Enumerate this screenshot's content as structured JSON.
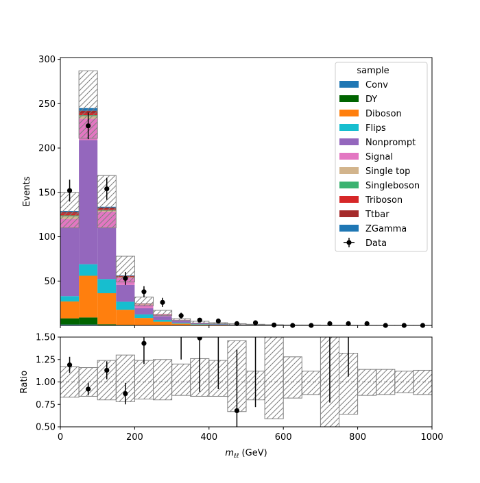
{
  "chart_data": {
    "type": "bar",
    "stacked": true,
    "bin_edges": [
      0,
      50,
      100,
      150,
      200,
      250,
      300,
      350,
      400,
      450,
      500,
      550,
      600,
      650,
      700,
      750,
      800,
      850,
      900,
      950,
      1000
    ],
    "xlim": [
      0,
      1000
    ],
    "main": {
      "ylabel": "Events",
      "ylim": [
        0,
        302
      ],
      "yticks": [
        50,
        100,
        150,
        200,
        250,
        300
      ],
      "series": [
        {
          "name": "Conv",
          "color": "#1f77b4",
          "values": [
            1,
            1,
            0.3,
            0.2,
            0.1,
            0,
            0,
            0,
            0,
            0,
            0,
            0,
            0,
            0,
            0,
            0,
            0,
            0,
            0,
            0
          ]
        },
        {
          "name": "DY",
          "color": "#006400",
          "values": [
            7,
            8,
            1,
            0.5,
            0.3,
            0.2,
            0.1,
            0,
            0,
            0,
            0,
            0,
            0,
            0,
            0,
            0,
            0,
            0,
            0,
            0
          ]
        },
        {
          "name": "Diboson",
          "color": "#ff7f0e",
          "values": [
            19,
            47,
            35,
            17,
            8,
            4,
            2,
            1,
            0.8,
            0.5,
            0.3,
            0.2,
            0.1,
            0.1,
            0.1,
            0,
            0,
            0,
            0,
            0
          ]
        },
        {
          "name": "Flips",
          "color": "#17becf",
          "values": [
            6,
            13,
            16,
            9,
            4,
            2,
            1,
            0.5,
            0.3,
            0.2,
            0.1,
            0,
            0,
            0,
            0,
            0,
            0,
            0,
            0,
            0
          ]
        },
        {
          "name": "Nonprompt",
          "color": "#9467bd",
          "values": [
            77,
            140,
            58,
            19,
            7,
            4,
            2,
            1,
            0.5,
            0.3,
            0.2,
            0.1,
            0,
            0,
            0,
            0,
            0,
            0,
            0,
            0
          ]
        },
        {
          "name": "Signal",
          "color": "#e377c2",
          "values": [
            10,
            24,
            18,
            8,
            4,
            2,
            1,
            0.5,
            0.3,
            0.2,
            0.1,
            0,
            0,
            0,
            0,
            0,
            0,
            0,
            0,
            0
          ]
        },
        {
          "name": "Single top",
          "color": "#d2b48c",
          "values": [
            3,
            3,
            1,
            0.5,
            0.3,
            0.1,
            0,
            0,
            0,
            0,
            0,
            0,
            0,
            0,
            0,
            0,
            0,
            0,
            0,
            0
          ]
        },
        {
          "name": "Singleboson",
          "color": "#3cb371",
          "values": [
            1,
            1,
            0.5,
            0.2,
            0.1,
            0,
            0,
            0,
            0,
            0,
            0,
            0,
            0,
            0,
            0,
            0,
            0,
            0,
            0,
            0
          ]
        },
        {
          "name": "Triboson",
          "color": "#d62728",
          "values": [
            2,
            2,
            1,
            0.5,
            0.3,
            0.2,
            0.1,
            0,
            0,
            0,
            0,
            0,
            0,
            0,
            0,
            0,
            0,
            0,
            0,
            0
          ]
        },
        {
          "name": "Ttbar",
          "color": "#a52a2a",
          "values": [
            2,
            3,
            2,
            1,
            0.5,
            0.3,
            0.1,
            0,
            0,
            0,
            0,
            0,
            0,
            0,
            0,
            0,
            0,
            0,
            0,
            0
          ]
        },
        {
          "name": "ZGamma",
          "color": "#1f77b4",
          "values": [
            1,
            3,
            1,
            0.5,
            0.2,
            0.1,
            0,
            0,
            0,
            0,
            0,
            0,
            0,
            0,
            0,
            0,
            0,
            0,
            0,
            0
          ]
        }
      ],
      "mc_uncertainty": {
        "down": [
          110,
          211,
          110,
          49,
          22,
          11,
          5.6,
          2.5,
          1.9,
          0.8,
          0.5,
          0.3,
          0.15,
          0.15,
          0.05,
          0.05,
          0.05,
          0.05,
          0.05,
          0.05
        ],
        "up": [
          150,
          287,
          169,
          78,
          32,
          17,
          7.6,
          4.7,
          3.1,
          2.0,
          1.3,
          0.8,
          0.5,
          0.5,
          0.35,
          0.35,
          0.2,
          0.2,
          0.2,
          0.2
        ]
      },
      "data": {
        "name": "Data",
        "x": [
          25,
          75,
          125,
          175,
          225,
          275,
          325,
          375,
          425,
          475,
          525,
          575,
          625,
          675,
          725,
          775,
          825,
          875,
          925,
          975
        ],
        "y": [
          152,
          225,
          154,
          53,
          38,
          26,
          11,
          6,
          5,
          2,
          3,
          0.5,
          0,
          0,
          2,
          2,
          2,
          0,
          0,
          0
        ],
        "yerr": [
          12.3,
          15,
          12.4,
          7.3,
          6.2,
          5.1,
          3.3,
          2.4,
          2.2,
          1.4,
          1.7,
          0.7,
          0,
          0,
          1.4,
          1.4,
          1.4,
          0,
          0,
          0
        ]
      }
    },
    "legend": {
      "title": "sample",
      "placement": "upper right"
    },
    "ratio": {
      "ylabel": "Ratio",
      "xlabel": "m_ℓℓ (GeV)",
      "ylim": [
        0.5,
        1.5
      ],
      "yticks": [
        0.5,
        0.75,
        1.0,
        1.25,
        1.5
      ],
      "xticks": [
        0,
        200,
        400,
        600,
        800,
        1000
      ],
      "reference": 1.0,
      "band": {
        "down": [
          0.83,
          0.84,
          0.8,
          0.78,
          0.81,
          0.8,
          0.85,
          0.84,
          0.84,
          0.67,
          0.8,
          0.59,
          0.82,
          0.86,
          0.5,
          0.64,
          0.85,
          0.86,
          0.88,
          0.86
        ],
        "up": [
          1.17,
          1.16,
          1.24,
          1.3,
          1.24,
          1.25,
          1.2,
          1.26,
          1.24,
          1.46,
          1.12,
          1.52,
          1.28,
          1.12,
          1.5,
          1.32,
          1.14,
          1.14,
          1.12,
          1.13
        ]
      },
      "data": {
        "x": [
          25,
          75,
          125,
          175,
          225,
          375,
          475
        ],
        "y": [
          1.19,
          0.92,
          1.13,
          0.87,
          1.43,
          1.49,
          0.68
        ],
        "yerr": [
          0.09,
          0.07,
          0.1,
          0.12,
          0.23,
          0.6,
          0.68
        ]
      },
      "offscale_errorbars": [
        {
          "x": 325,
          "low": 1.25
        },
        {
          "x": 425,
          "low": 0.92
        },
        {
          "x": 525,
          "low": 0.72
        },
        {
          "x": 725,
          "low": 0.77
        },
        {
          "x": 775,
          "low": 1.06
        }
      ]
    }
  }
}
